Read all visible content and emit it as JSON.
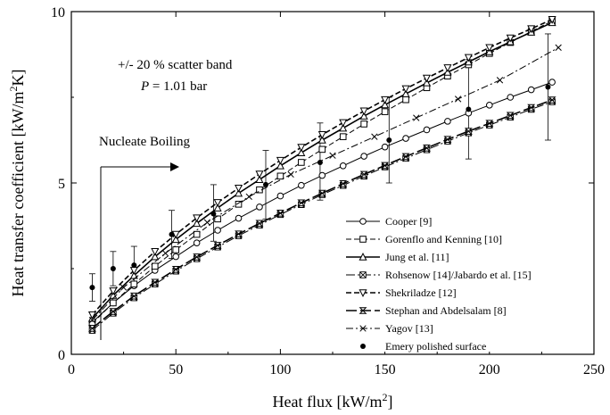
{
  "chart_data": {
    "type": "line",
    "xlabel": "Heat flux [kW/m",
    "xlabel_sup": "2",
    "xlabel_end": "]",
    "ylabel": "Heat transfer coefficient [kW/m",
    "ylabel_sup": "2",
    "ylabel_end": "K]",
    "xlim": [
      0,
      250
    ],
    "ylim": [
      0,
      10
    ],
    "xticks": [
      0,
      50,
      100,
      150,
      200,
      250
    ],
    "yticks": [
      0,
      5,
      10
    ],
    "grid": false,
    "legend_position": "bottom-right",
    "annotations": {
      "scatter_band": "+/- 20 % scatter band",
      "pressure_var": "P",
      "pressure_rest": " = 1.01 bar",
      "nucleate_boiling": "Nucleate Boiling"
    },
    "series": [
      {
        "name": "Cooper [9]",
        "marker": "circle",
        "dash": "",
        "x": [
          10,
          20,
          30,
          40,
          50,
          60,
          70,
          80,
          90,
          100,
          110,
          120,
          130,
          140,
          150,
          160,
          170,
          180,
          190,
          200,
          210,
          220,
          230
        ],
        "y": [
          0.93,
          1.5,
          2.0,
          2.45,
          2.85,
          3.25,
          3.62,
          3.97,
          4.3,
          4.62,
          4.93,
          5.22,
          5.5,
          5.78,
          6.05,
          6.3,
          6.55,
          6.8,
          7.04,
          7.27,
          7.5,
          7.72,
          7.94
        ]
      },
      {
        "name": "Gorenflo and Kenning [10]",
        "marker": "square",
        "dash": "6,3",
        "x": [
          10,
          20,
          30,
          40,
          50,
          60,
          70,
          80,
          90,
          100,
          110,
          120,
          130,
          140,
          150,
          160,
          170,
          180,
          190,
          200,
          210,
          220,
          230
        ],
        "y": [
          0.9,
          1.5,
          2.05,
          2.57,
          3.05,
          3.5,
          3.95,
          4.38,
          4.8,
          5.2,
          5.6,
          5.98,
          6.35,
          6.72,
          7.08,
          7.43,
          7.78,
          8.12,
          8.45,
          8.78,
          9.1,
          9.42,
          9.73
        ]
      },
      {
        "name": "Jung et al. [11]",
        "marker": "triangle",
        "dash": "",
        "x": [
          10,
          20,
          30,
          40,
          50,
          60,
          70,
          80,
          90,
          100,
          110,
          120,
          130,
          140,
          150,
          160,
          170,
          180,
          190,
          200,
          210,
          220,
          230
        ],
        "y": [
          1.05,
          1.72,
          2.3,
          2.85,
          3.35,
          3.82,
          4.27,
          4.7,
          5.1,
          5.5,
          5.88,
          6.25,
          6.6,
          6.95,
          7.28,
          7.6,
          7.92,
          8.23,
          8.53,
          8.83,
          9.12,
          9.4,
          9.68
        ]
      },
      {
        "name": "Rohsenow [14]/Jabardo et al. [15]",
        "marker": "xsquare",
        "dash": "10,3,2,3",
        "x": [
          10,
          20,
          30,
          40,
          50,
          60,
          70,
          80,
          90,
          100,
          110,
          120,
          130,
          140,
          150,
          160,
          170,
          180,
          190,
          200,
          210,
          220,
          230
        ],
        "y": [
          0.7,
          1.2,
          1.65,
          2.05,
          2.43,
          2.79,
          3.13,
          3.46,
          3.77,
          4.08,
          4.37,
          4.66,
          4.93,
          5.2,
          5.47,
          5.72,
          5.97,
          6.22,
          6.46,
          6.69,
          6.92,
          7.15,
          7.37
        ]
      },
      {
        "name": "Shekriladze [12]",
        "marker": "triangle-down",
        "dash": "6,3",
        "x": [
          10,
          20,
          30,
          40,
          50,
          60,
          70,
          80,
          90,
          100,
          110,
          120,
          130,
          140,
          150,
          160,
          170,
          180,
          190,
          200,
          210,
          220,
          230
        ],
        "y": [
          1.15,
          1.85,
          2.45,
          3.0,
          3.5,
          3.98,
          4.43,
          4.85,
          5.26,
          5.66,
          6.04,
          6.41,
          6.76,
          7.1,
          7.43,
          7.75,
          8.06,
          8.36,
          8.66,
          8.95,
          9.23,
          9.5,
          9.77
        ]
      },
      {
        "name": "Stephan and Abdelsalam [8]",
        "marker": "bowtie",
        "dash": "12,4",
        "x": [
          10,
          20,
          30,
          40,
          50,
          60,
          70,
          80,
          90,
          100,
          110,
          120,
          130,
          140,
          150,
          160,
          170,
          180,
          190,
          200,
          210,
          220,
          230
        ],
        "y": [
          0.76,
          1.25,
          1.7,
          2.1,
          2.48,
          2.84,
          3.18,
          3.51,
          3.82,
          4.12,
          4.42,
          4.7,
          4.98,
          5.25,
          5.51,
          5.77,
          6.02,
          6.27,
          6.51,
          6.74,
          6.97,
          7.2,
          7.42
        ]
      },
      {
        "name": "Yagov [13]",
        "marker": "x",
        "dash": "8,3,2,3",
        "x": [
          10,
          25,
          45,
          65,
          85,
          105,
          125,
          145,
          165,
          185,
          205,
          233
        ],
        "y": [
          1.0,
          1.95,
          2.95,
          3.85,
          4.6,
          5.25,
          5.8,
          6.35,
          6.9,
          7.45,
          8.0,
          8.95
        ]
      },
      {
        "name": "Emery polished surface",
        "marker": "dot",
        "dash": "none",
        "x": [
          10,
          20,
          30,
          48,
          68,
          93,
          119,
          152,
          190,
          228
        ],
        "y": [
          1.95,
          2.5,
          2.6,
          3.5,
          4.1,
          4.95,
          5.6,
          6.25,
          7.15,
          7.8
        ],
        "err_low": [
          1.55,
          2.0,
          2.1,
          2.8,
          3.3,
          3.95,
          4.5,
          5.0,
          5.7,
          6.25
        ],
        "err_high": [
          2.35,
          3.0,
          3.15,
          4.2,
          4.95,
          5.95,
          6.75,
          7.5,
          8.6,
          9.35
        ]
      }
    ]
  }
}
